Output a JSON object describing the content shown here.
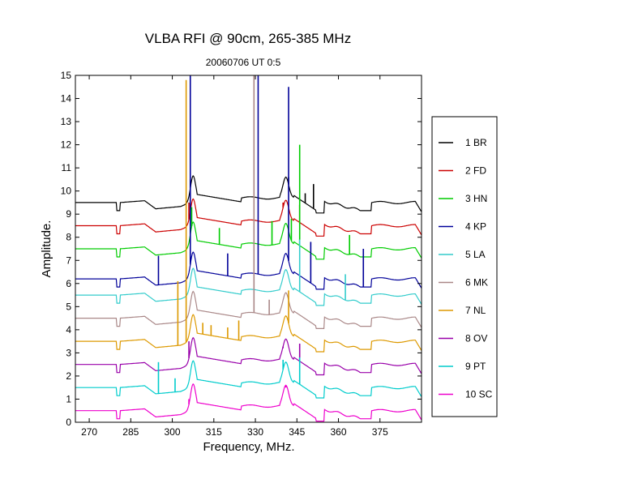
{
  "chart_data": {
    "type": "line",
    "title": "VLBA RFI @ 90cm, 265-385 MHz",
    "subtitle": "20060706   UT 0:5",
    "xlabel": "Frequency, MHz.",
    "ylabel": "Amplitude.",
    "xlim": [
      265,
      390
    ],
    "ylim": [
      0,
      15
    ],
    "xticks": [
      270,
      285,
      300,
      315,
      330,
      345,
      360,
      375
    ],
    "yticks": [
      0,
      1,
      2,
      3,
      4,
      5,
      6,
      7,
      8,
      9,
      10,
      11,
      12,
      13,
      14,
      15
    ],
    "grid": false,
    "legend_position": "right",
    "series": [
      {
        "name": "1 BR",
        "color": "#000000",
        "baseline": 9.5,
        "spikes": [
          [
            306.5,
            10.5
          ],
          [
            342,
            10.6
          ],
          [
            348,
            9.9
          ],
          [
            351,
            10.3
          ]
        ]
      },
      {
        "name": "2 FD",
        "color": "#cc0000",
        "baseline": 8.5,
        "spikes": [
          [
            306,
            9.5
          ],
          [
            340,
            9.5
          ],
          [
            346,
            9.4
          ]
        ]
      },
      {
        "name": "3 HN",
        "color": "#00cc00",
        "baseline": 7.5,
        "spikes": [
          [
            307,
            9.3
          ],
          [
            317,
            8.4
          ],
          [
            336,
            8.7
          ],
          [
            343,
            8.8
          ],
          [
            346,
            12.0
          ],
          [
            364,
            8.1
          ]
        ]
      },
      {
        "name": "4 KP",
        "color": "#000099",
        "baseline": 6.2,
        "spikes": [
          [
            295,
            7.2
          ],
          [
            306.5,
            15.0
          ],
          [
            320,
            7.3
          ],
          [
            331,
            15.0
          ],
          [
            342,
            14.5
          ],
          [
            350,
            7.8
          ],
          [
            369,
            7.5
          ]
        ]
      },
      {
        "name": "5 LA",
        "color": "#33cccc",
        "baseline": 5.5,
        "spikes": [
          [
            346,
            7.9
          ],
          [
            362.5,
            6.4
          ]
        ]
      },
      {
        "name": "6 MK",
        "color": "#aa8888",
        "baseline": 4.5,
        "spikes": [
          [
            329.5,
            15.0
          ],
          [
            335,
            5.3
          ]
        ]
      },
      {
        "name": "7 NL",
        "color": "#dd9900",
        "baseline": 3.5,
        "spikes": [
          [
            302,
            6.1
          ],
          [
            305,
            14.8
          ],
          [
            311,
            4.3
          ],
          [
            314,
            4.2
          ],
          [
            320,
            4.1
          ],
          [
            324,
            4.4
          ],
          [
            342,
            5.7
          ]
        ]
      },
      {
        "name": "8 OV",
        "color": "#9900aa",
        "baseline": 2.5,
        "spikes": [
          [
            306,
            3.5
          ],
          [
            340,
            3.2
          ],
          [
            346,
            3.4
          ]
        ]
      },
      {
        "name": "9 PT",
        "color": "#00cccc",
        "baseline": 1.5,
        "spikes": [
          [
            295,
            2.6
          ],
          [
            301,
            1.9
          ],
          [
            340,
            2.7
          ],
          [
            346,
            2.8
          ]
        ]
      },
      {
        "name": "10 SC",
        "color": "#ee00cc",
        "baseline": 0.5,
        "spikes": [
          [
            306,
            1.0
          ],
          [
            341,
            1.5
          ]
        ]
      }
    ]
  }
}
